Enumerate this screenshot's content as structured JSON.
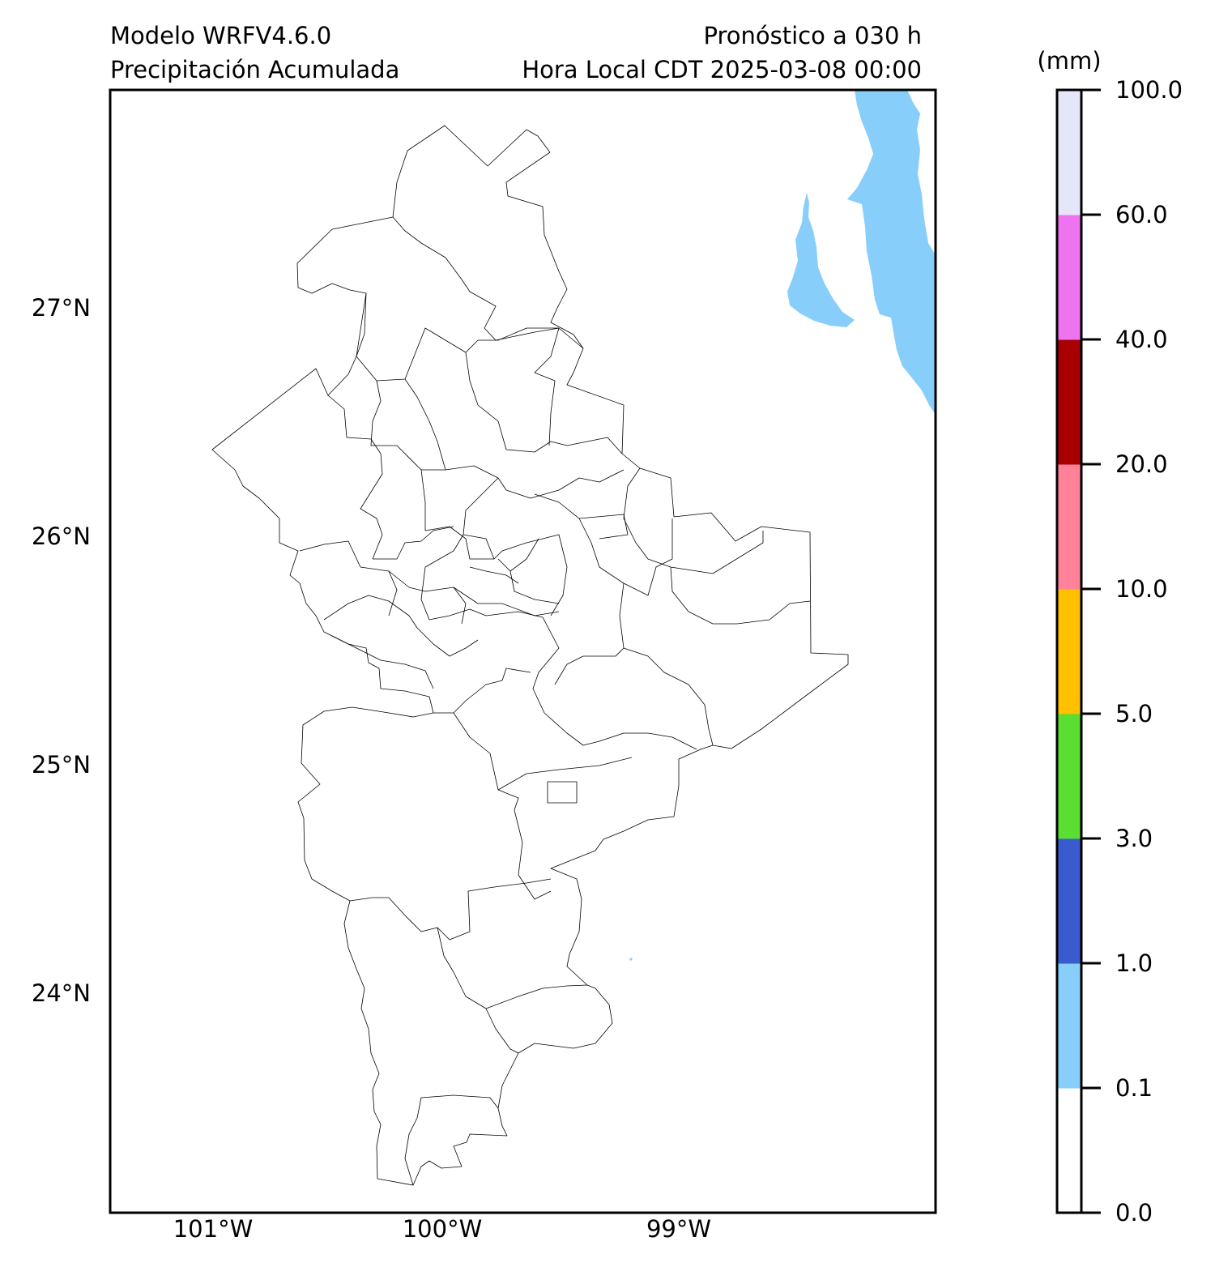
{
  "header": {
    "model": "Modelo WRFV4.6.0",
    "variable": "Precipitación Acumulada",
    "forecast": "Pronóstico a 030 h",
    "valid_time": "Hora Local CDT 2025-03-08 00:00"
  },
  "axes": {
    "lat_labels": [
      "27°N",
      "26°N",
      "25°N",
      "24°N"
    ],
    "lon_labels": [
      "101°W",
      "100°W",
      "99°W"
    ]
  },
  "colorbar": {
    "unit": "(mm)",
    "levels": [
      "0.0",
      "0.1",
      "1.0",
      "3.0",
      "5.0",
      "10.0",
      "20.0",
      "40.0",
      "60.0",
      "100.0"
    ],
    "colors": [
      "#ffffff",
      "#87cefa",
      "#3a5bd0",
      "#5ade32",
      "#ffc000",
      "#ff8299",
      "#a80000",
      "#ef72ee",
      "#e6e6fa"
    ]
  },
  "map": {
    "precip_color": "#87cefa",
    "boundary_color": "#000000"
  }
}
